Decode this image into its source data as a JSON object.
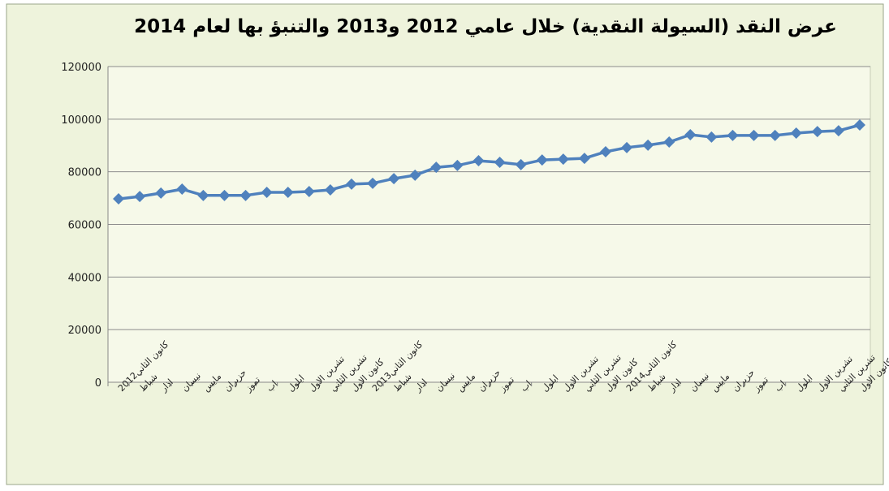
{
  "chart_data": {
    "type": "line",
    "title": "عرض النقد (السيولة النقدية) خلال عامي 2012 و2013 والتنبؤ بها  لعام 2014",
    "categories": [
      "كانون الثاني2012",
      "شباط",
      "اذار",
      "نيسان",
      "مايس",
      "حزيران",
      "تموز",
      "اب",
      "ايلول",
      "تشرين الاول",
      "تشرين الثاني",
      "كانون الاول",
      "كانون الثاني2013",
      "شباط",
      "اذار",
      "نيسان",
      "مايس",
      "حزيران",
      "تموز",
      "اب",
      "ايلول",
      "تشرين الاول",
      "تشرين الثاني",
      "كانون الاول",
      "كانون الثاني2014",
      "شباط",
      "اذار",
      "نيسان",
      "مايس",
      "حزيران",
      "تموز",
      "اب",
      "ايلول",
      "تشرين الاول",
      "تشرين الثاني",
      "كانون الاول"
    ],
    "values": [
      69700,
      70600,
      71900,
      73400,
      71000,
      71000,
      71000,
      72200,
      72200,
      72500,
      73100,
      75300,
      75600,
      77400,
      78700,
      81700,
      82400,
      84200,
      83600,
      82700,
      84500,
      84800,
      85100,
      87600,
      89200,
      90100,
      91300,
      94100,
      93200,
      93800,
      93800,
      93800,
      94700,
      95300,
      95600,
      97800
    ],
    "color": "#4f81bd",
    "ylim": [
      0,
      120000
    ],
    "yticks": [
      0,
      20000,
      40000,
      60000,
      80000,
      100000,
      120000
    ],
    "grid": true
  }
}
